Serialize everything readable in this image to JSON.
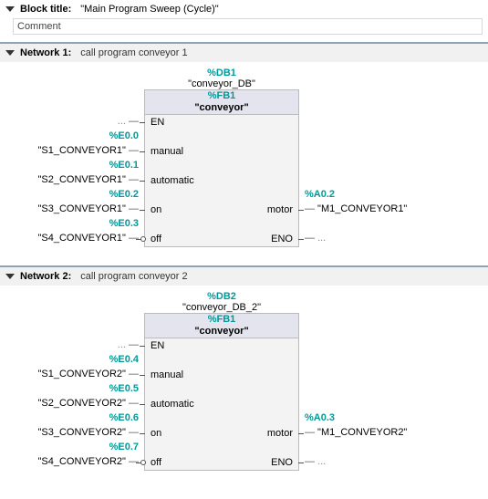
{
  "block": {
    "title_label": "Block title:",
    "title_value": "\"Main Program Sweep (Cycle)\"",
    "comment_placeholder": "Comment"
  },
  "networks": [
    {
      "label": "Network 1:",
      "title": "call program conveyor 1",
      "db_addr": "%DB1",
      "db_name": "\"conveyor_DB\"",
      "fb_addr": "%FB1",
      "fb_name": "\"conveyor\"",
      "inputs": [
        {
          "addr": "...",
          "tag": "...",
          "param": "EN",
          "neg": false,
          "dots": true
        },
        {
          "addr": "%E0.0",
          "tag": "\"S1_CONVEYOR1\"",
          "param": "manual",
          "neg": false
        },
        {
          "addr": "%E0.1",
          "tag": "\"S2_CONVEYOR1\"",
          "param": "automatic",
          "neg": false
        },
        {
          "addr": "%E0.2",
          "tag": "\"S3_CONVEYOR1\"",
          "param": "on",
          "neg": false
        },
        {
          "addr": "%E0.3",
          "tag": "\"S4_CONVEYOR1\"",
          "param": "off",
          "neg": true
        }
      ],
      "outputs": [
        {
          "addr": "%A0.2",
          "tag": "\"M1_CONVEYOR1\"",
          "param": "motor"
        },
        {
          "addr": "",
          "tag": "...",
          "param": "ENO",
          "dots": true
        }
      ],
      "layout": {
        "left_w": 132,
        "mid_l": 110,
        "mid_r": 60,
        "right_w": 150,
        "output_row_start": 4
      }
    },
    {
      "label": "Network 2:",
      "title": "call program conveyor 2",
      "db_addr": "%DB2",
      "db_name": "\"conveyor_DB_2\"",
      "fb_addr": "%FB1",
      "fb_name": "\"conveyor\"",
      "inputs": [
        {
          "addr": "...",
          "tag": "...",
          "param": "EN",
          "neg": false,
          "dots": true
        },
        {
          "addr": "%E0.4",
          "tag": "\"S1_CONVEYOR2\"",
          "param": "manual",
          "neg": false
        },
        {
          "addr": "%E0.5",
          "tag": "\"S2_CONVEYOR2\"",
          "param": "automatic",
          "neg": false
        },
        {
          "addr": "%E0.6",
          "tag": "\"S3_CONVEYOR2\"",
          "param": "on",
          "neg": false
        },
        {
          "addr": "%E0.7",
          "tag": "\"S4_CONVEYOR2\"",
          "param": "off",
          "neg": true
        }
      ],
      "outputs": [
        {
          "addr": "%A0.3",
          "tag": "\"M1_CONVEYOR2\"",
          "param": "motor"
        },
        {
          "addr": "",
          "tag": "...",
          "param": "ENO",
          "dots": true
        }
      ],
      "layout": {
        "left_w": 132,
        "mid_l": 110,
        "mid_r": 60,
        "right_w": 150,
        "output_row_start": 4
      }
    }
  ],
  "colors": {
    "accent": "#009999",
    "grid_bg": "#f3f3f3",
    "header_bg": "#e4e4ef"
  }
}
